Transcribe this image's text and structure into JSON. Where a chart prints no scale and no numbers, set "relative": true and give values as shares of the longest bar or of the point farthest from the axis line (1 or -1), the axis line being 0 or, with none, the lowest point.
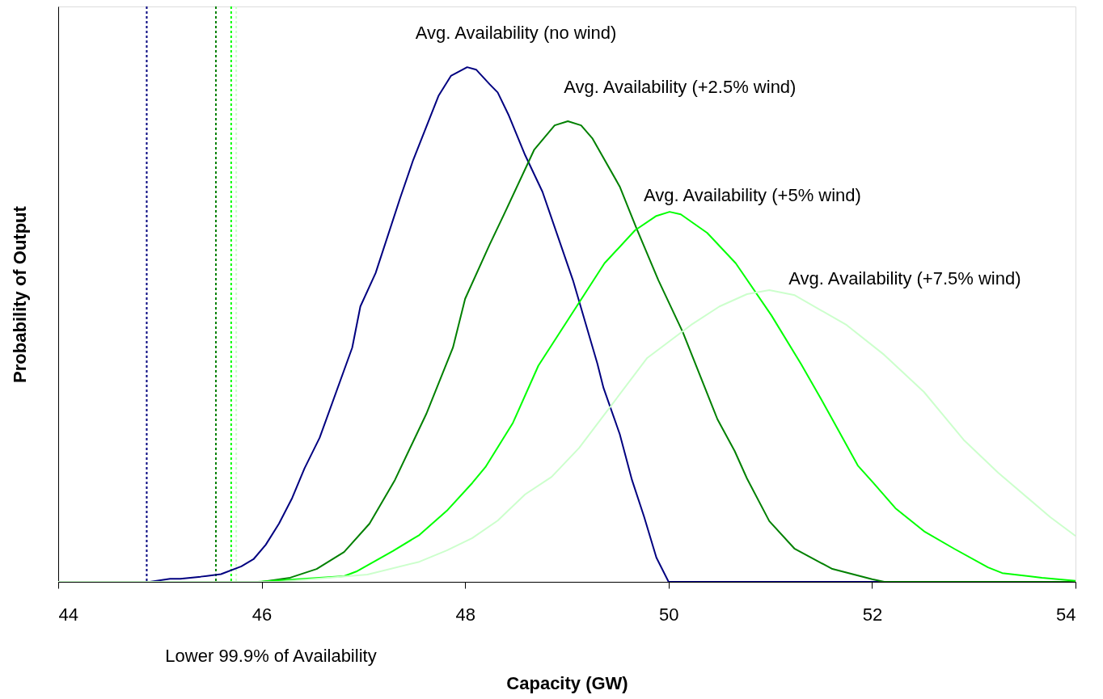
{
  "chart_data": {
    "type": "line",
    "xlabel": "Capacity (GW)",
    "ylabel": "Probability of Output",
    "relative": true,
    "xlim": [
      44,
      54
    ],
    "xticks": [
      44,
      46,
      48,
      50,
      52,
      54
    ],
    "tick_labels": "x",
    "series": [
      {
        "name": "Avg. Availability (no wind)",
        "color": "#000080",
        "x": [
          44.0,
          44.9,
          45.1,
          45.2,
          45.4,
          45.6,
          45.8,
          45.92,
          46.04,
          46.17,
          46.3,
          46.42,
          46.57,
          46.89,
          46.97,
          47.12,
          47.36,
          47.49,
          47.74,
          47.86,
          48.02,
          48.11,
          48.24,
          48.32,
          48.43,
          48.59,
          48.76,
          49.06,
          49.3,
          49.36,
          49.52,
          49.64,
          49.76,
          49.88,
          50.0,
          51.0,
          52.0,
          53.0,
          54.0
        ],
        "values": [
          0,
          0,
          0.006,
          0.006,
          0.01,
          0.015,
          0.03,
          0.044,
          0.072,
          0.113,
          0.163,
          0.22,
          0.28,
          0.455,
          0.535,
          0.6,
          0.745,
          0.82,
          0.945,
          0.983,
          1.0,
          0.995,
          0.967,
          0.951,
          0.906,
          0.829,
          0.758,
          0.586,
          0.424,
          0.377,
          0.287,
          0.198,
          0.126,
          0.047,
          0,
          0,
          0,
          0,
          0
        ]
      },
      {
        "name": "Avg. Availability (+2.5% wind)",
        "color": "#008000",
        "x": [
          44.0,
          45.0,
          46.0,
          46.28,
          46.54,
          46.81,
          47.06,
          47.31,
          47.62,
          47.88,
          48.0,
          48.24,
          48.38,
          48.68,
          48.88,
          49.01,
          49.14,
          49.25,
          49.52,
          49.68,
          49.9,
          50.14,
          50.48,
          50.65,
          50.77,
          50.99,
          51.24,
          51.61,
          52.0,
          52.12,
          53.0,
          54.0
        ],
        "values": [
          0,
          0,
          0,
          0.008,
          0.025,
          0.058,
          0.113,
          0.198,
          0.327,
          0.455,
          0.55,
          0.655,
          0.713,
          0.84,
          0.887,
          0.895,
          0.887,
          0.862,
          0.768,
          0.689,
          0.586,
          0.485,
          0.316,
          0.254,
          0.201,
          0.118,
          0.064,
          0.025,
          0.005,
          0,
          0,
          0
        ]
      },
      {
        "name": "Avg. Availability (+5% wind)",
        "color": "#00ff00",
        "x": [
          44.0,
          45.0,
          45.96,
          46.81,
          46.93,
          47.29,
          47.55,
          47.82,
          48.07,
          48.2,
          48.47,
          48.72,
          49.37,
          49.67,
          49.88,
          50.01,
          50.12,
          50.38,
          50.66,
          51.01,
          51.3,
          51.5,
          51.62,
          51.86,
          52.01,
          52.23,
          52.52,
          52.81,
          53.14,
          53.28,
          53.67,
          54.0
        ],
        "values": [
          0,
          0,
          0,
          0.011,
          0.02,
          0.06,
          0.091,
          0.138,
          0.192,
          0.223,
          0.309,
          0.42,
          0.619,
          0.683,
          0.711,
          0.719,
          0.714,
          0.678,
          0.619,
          0.518,
          0.424,
          0.355,
          0.312,
          0.226,
          0.193,
          0.143,
          0.097,
          0.064,
          0.028,
          0.017,
          0.008,
          0.002
        ]
      },
      {
        "name": "Avg. Availability (+7.5% wind)",
        "color": "#ccffcc",
        "x": [
          44.0,
          45.0,
          46.17,
          47.04,
          47.55,
          47.82,
          48.07,
          48.32,
          48.59,
          48.85,
          49.12,
          49.43,
          49.79,
          50.22,
          50.5,
          50.77,
          50.99,
          51.24,
          51.75,
          52.12,
          52.51,
          52.9,
          53.24,
          53.75,
          54.0
        ],
        "values": [
          0,
          0,
          0,
          0.014,
          0.039,
          0.061,
          0.085,
          0.119,
          0.17,
          0.204,
          0.26,
          0.341,
          0.435,
          0.499,
          0.535,
          0.559,
          0.567,
          0.557,
          0.499,
          0.441,
          0.369,
          0.276,
          0.212,
          0.126,
          0.089
        ]
      }
    ],
    "ref_lines": [
      {
        "axis": "x",
        "value": 44.87,
        "color": "#000080",
        "line_style": "dotted"
      },
      {
        "axis": "x",
        "value": 45.55,
        "color": "#008000",
        "line_style": "dotted"
      },
      {
        "axis": "x",
        "value": 45.7,
        "color": "#00ff00",
        "line_style": "dotted"
      },
      {
        "axis": "x",
        "value": 45.75,
        "color": "#ccffcc",
        "line_style": "dotted"
      }
    ],
    "annotations": [
      "Lower 99.9% of Availability"
    ]
  }
}
